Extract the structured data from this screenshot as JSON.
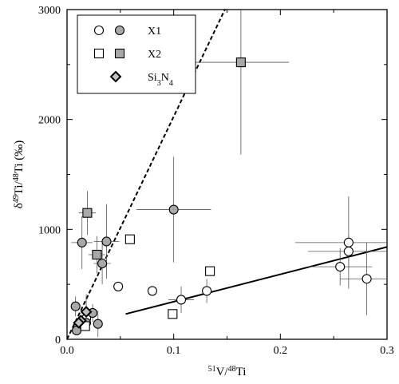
{
  "chart_data": {
    "type": "scatter",
    "xlabel": "51V/48Ti",
    "ylabel": "δ49Ti/48Ti (‰)",
    "xlabel_parts": [
      {
        "t": "51",
        "sup": true
      },
      {
        "t": "V/",
        "sup": false
      },
      {
        "t": "48",
        "sup": true
      },
      {
        "t": "Ti",
        "sup": false
      }
    ],
    "ylabel_parts": [
      {
        "t": "δ",
        "sup": false
      },
      {
        "t": "49",
        "sup": true
      },
      {
        "t": "Ti/",
        "sup": false
      },
      {
        "t": "48",
        "sup": true
      },
      {
        "t": "Ti (‰)",
        "sup": false
      }
    ],
    "xlim": [
      0,
      0.3
    ],
    "ylim": [
      0,
      3000
    ],
    "xticks": [
      0,
      0.1,
      0.2,
      0.3
    ],
    "xtick_labels": [
      "0.0",
      "0.1",
      "0.2",
      "0.3"
    ],
    "yticks": [
      0,
      1000,
      2000,
      3000
    ],
    "ytick_labels": [
      "0",
      "1000",
      "2000",
      "3000"
    ],
    "grid": false,
    "legend": {
      "position": "top-left",
      "entries": [
        {
          "label": "X1",
          "label_parts": [
            {
              "t": "X1",
              "sub": false
            }
          ],
          "markers": [
            "circle-open",
            "circle-filled"
          ]
        },
        {
          "label": "X2",
          "label_parts": [
            {
              "t": "X2",
              "sub": false
            }
          ],
          "markers": [
            "square-open",
            "square-filled"
          ]
        },
        {
          "label": "Si3N4",
          "label_parts": [
            {
              "t": "Si",
              "sub": false
            },
            {
              "t": "3",
              "sub": true
            },
            {
              "t": "N",
              "sub": false
            },
            {
              "t": "4",
              "sub": true
            }
          ],
          "markers": [
            "diamond"
          ]
        }
      ]
    },
    "colors": {
      "filled": "#a8a8a8",
      "open": "#ffffff",
      "stroke": "#000000",
      "errorbar": "#555555"
    },
    "series": [
      {
        "name": "X1",
        "marker": "circle",
        "points": [
          {
            "x": 0.048,
            "y": 480,
            "fill": "open"
          },
          {
            "x": 0.08,
            "y": 440,
            "fill": "open"
          },
          {
            "x": 0.107,
            "y": 360,
            "fill": "open",
            "xerr": 0.012,
            "yerr": 120
          },
          {
            "x": 0.131,
            "y": 440,
            "fill": "open",
            "yerr": 110
          },
          {
            "x": 0.256,
            "y": 660,
            "fill": "open",
            "xerr": 0.03,
            "yerr": 170
          },
          {
            "x": 0.264,
            "y": 880,
            "fill": "open",
            "xerr": 0.05,
            "yerr": 420
          },
          {
            "x": 0.264,
            "y": 800,
            "fill": "open",
            "xerr": 0.038,
            "yerr": 150
          },
          {
            "x": 0.281,
            "y": 550,
            "fill": "open",
            "xerr": 0.025,
            "yerr": 330
          },
          {
            "x": 0.018,
            "y": 190,
            "fill": "open"
          },
          {
            "x": 0.014,
            "y": 880,
            "fill": "filled",
            "xerr": 0.01,
            "yerr": 240
          },
          {
            "x": 0.033,
            "y": 690,
            "fill": "filled",
            "xerr": 0.008,
            "yerr": 190
          },
          {
            "x": 0.037,
            "y": 890,
            "fill": "filled",
            "xerr": 0.012,
            "yerr": 340
          },
          {
            "x": 0.1,
            "y": 1180,
            "fill": "filled",
            "xerr": 0.035,
            "yerr": 480
          },
          {
            "x": 0.008,
            "y": 300,
            "fill": "filled",
            "yerr": 90
          },
          {
            "x": 0.009,
            "y": 80,
            "fill": "filled"
          },
          {
            "x": 0.024,
            "y": 240,
            "fill": "filled",
            "yerr": 80
          },
          {
            "x": 0.029,
            "y": 140,
            "fill": "filled",
            "yerr": 120
          },
          {
            "x": 0.018,
            "y": 150,
            "fill": "filled"
          }
        ]
      },
      {
        "name": "X2",
        "marker": "square",
        "points": [
          {
            "x": 0.059,
            "y": 910,
            "fill": "open"
          },
          {
            "x": 0.134,
            "y": 620,
            "fill": "open"
          },
          {
            "x": 0.099,
            "y": 230,
            "fill": "open"
          },
          {
            "x": 0.017,
            "y": 120,
            "fill": "open"
          },
          {
            "x": 0.019,
            "y": 1150,
            "fill": "filled",
            "xerr": 0.008,
            "yerr": 200
          },
          {
            "x": 0.163,
            "y": 2520,
            "fill": "filled",
            "xerr": 0.045,
            "yerr": 840
          },
          {
            "x": 0.028,
            "y": 770,
            "fill": "filled",
            "xerr": 0.008,
            "yerr": 170
          }
        ]
      },
      {
        "name": "Si3N4",
        "marker": "diamond",
        "points": [
          {
            "x": 0.018,
            "y": 250,
            "fill": "filled",
            "yerr": 160
          },
          {
            "x": 0.013,
            "y": 170,
            "fill": "filled"
          },
          {
            "x": 0.011,
            "y": 150,
            "fill": "filled"
          }
        ]
      }
    ],
    "lines": [
      {
        "style": "solid",
        "x": [
          0.055,
          0.3
        ],
        "y": [
          230,
          840
        ]
      },
      {
        "style": "dashed",
        "x": [
          0.0,
          0.148
        ],
        "y": [
          0,
          3000
        ]
      }
    ]
  }
}
